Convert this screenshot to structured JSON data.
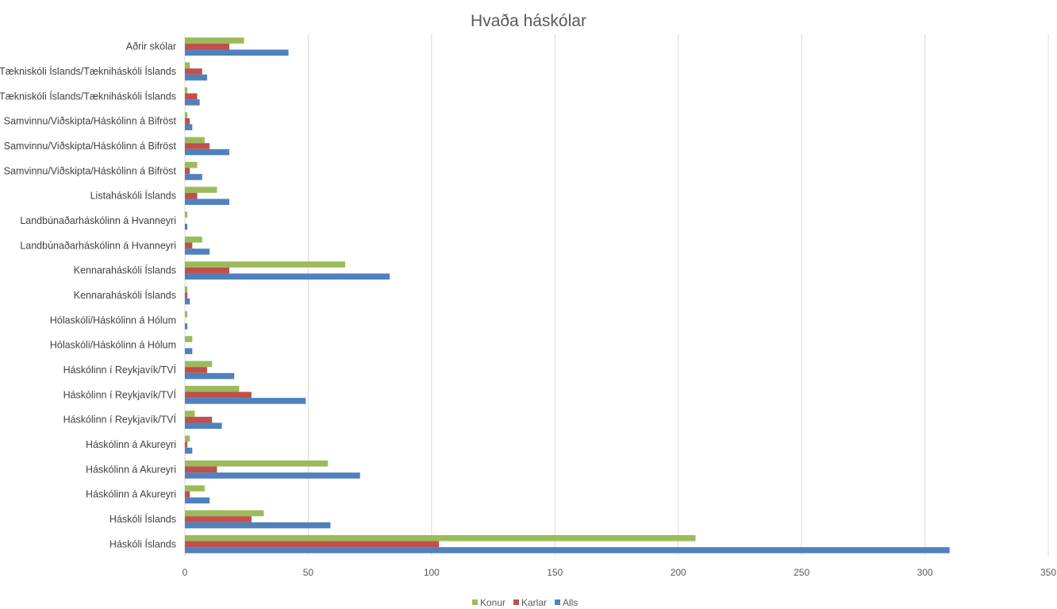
{
  "chart_data": {
    "type": "bar",
    "orientation": "horizontal",
    "title": "Hvaða háskólar",
    "xlabel": "",
    "ylabel": "",
    "xlim": [
      0,
      350
    ],
    "xticks": [
      0,
      50,
      100,
      150,
      200,
      250,
      300,
      350
    ],
    "grid": true,
    "legend_position": "bottom",
    "categories": [
      "Háskóli Íslands",
      "Háskóli Íslands",
      "Háskólinn á Akureyri",
      "Háskólinn á Akureyri",
      "Háskólinn á Akureyri",
      "Háskólinn í Reykjavík/TVÍ",
      "Háskólinn í Reykjavík/TVÍ",
      "Háskólinn í Reykjavík/TVÍ",
      "Hólaskóli/Háskólinn á Hólum",
      "Hólaskóli/Háskólinn á Hólum",
      "Kennaraháskóli Íslands",
      "Kennaraháskóli Íslands",
      "Landbúnaðarháskólinn á Hvanneyri",
      "Landbúnaðarháskólinn á Hvanneyri",
      "Listaháskóli Íslands",
      "Samvinnu/Viðskipta/Háskólinn á Bifröst",
      "Samvinnu/Viðskipta/Háskólinn á Bifröst",
      "Samvinnu/Viðskipta/Háskólinn á Bifröst",
      "Tækniskóli Íslands/Tækniháskóli Íslands",
      "Tækniskóli Íslands/Tækniháskóli Íslands",
      "Aðrir skólar"
    ],
    "series": [
      {
        "name": "Konur",
        "color": "#9bbb59",
        "values": [
          207,
          32,
          8,
          58,
          2,
          4,
          22,
          11,
          3,
          1,
          1,
          65,
          7,
          1,
          13,
          5,
          8,
          1,
          1,
          2,
          24
        ]
      },
      {
        "name": "Karlar",
        "color": "#c0504d",
        "values": [
          103,
          27,
          2,
          13,
          1,
          11,
          27,
          9,
          0,
          0,
          1,
          18,
          3,
          0,
          5,
          2,
          10,
          2,
          5,
          7,
          18
        ]
      },
      {
        "name": "Alls",
        "color": "#4f81bd",
        "values": [
          310,
          59,
          10,
          71,
          3,
          15,
          49,
          20,
          3,
          1,
          2,
          83,
          10,
          1,
          18,
          7,
          18,
          3,
          6,
          9,
          42
        ]
      }
    ]
  }
}
